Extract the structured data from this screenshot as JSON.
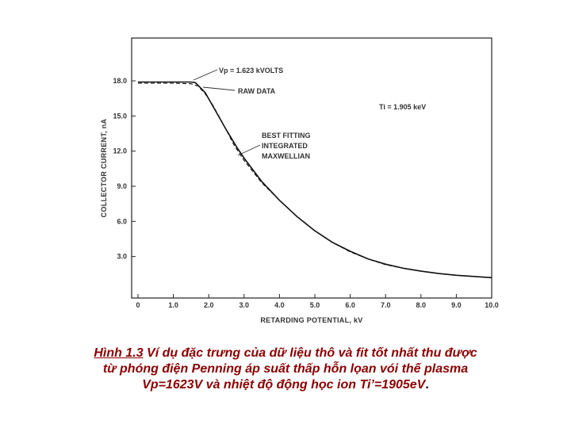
{
  "chart_data": {
    "type": "line",
    "xlabel": "RETARDING POTENTIAL, kV",
    "ylabel": "COLLECTOR CURRENT, nA",
    "xlim": [
      0,
      10
    ],
    "ylim": [
      0,
      18
    ],
    "x_ticks": [
      "0",
      "1.0",
      "2.0",
      "3.0",
      "4.0",
      "5.0",
      "6.0",
      "7.0",
      "8.0",
      "9.0",
      "10.0"
    ],
    "y_ticks": [
      "3.0",
      "6.0",
      "9.0",
      "12.0",
      "15.0",
      "18.0"
    ],
    "grid": false,
    "series": [
      {
        "name": "RAW DATA",
        "style": "dashed",
        "x": [
          0,
          0.5,
          1.0,
          1.5,
          1.7,
          1.9,
          2.1,
          2.3,
          2.5,
          2.7,
          3.0,
          3.5,
          4.0,
          4.5,
          5.0,
          5.5,
          6.0,
          6.5,
          7.0,
          7.5,
          8.0,
          8.5,
          9.0,
          9.5,
          10.0
        ],
        "y": [
          17.8,
          17.8,
          17.8,
          17.75,
          17.55,
          16.9,
          16.0,
          14.9,
          13.8,
          12.6,
          11.2,
          9.3,
          7.8,
          6.4,
          5.2,
          4.2,
          3.4,
          2.8,
          2.3,
          2.0,
          1.75,
          1.55,
          1.4,
          1.3,
          1.2
        ]
      },
      {
        "name": "BEST FITTING INTEGRATED MAXWELLIAN",
        "style": "solid",
        "x": [
          0,
          0.5,
          1.0,
          1.5,
          1.62,
          1.9,
          2.2,
          2.5,
          2.8,
          3.0,
          3.5,
          4.0,
          4.5,
          5.0,
          5.5,
          6.0,
          6.5,
          7.0,
          7.5,
          8.0,
          8.5,
          9.0,
          9.5,
          10.0
        ],
        "y": [
          17.9,
          17.9,
          17.9,
          17.9,
          17.85,
          17.0,
          15.4,
          13.8,
          12.3,
          11.4,
          9.4,
          7.8,
          6.4,
          5.2,
          4.2,
          3.45,
          2.8,
          2.35,
          2.0,
          1.75,
          1.55,
          1.4,
          1.3,
          1.2
        ]
      }
    ],
    "annotations": {
      "vp": "Vp = 1.623 kVOLTS",
      "raw": "RAW DATA",
      "ti": "Ti = 1.905 keV",
      "fit": [
        "BEST FITTING",
        "INTEGRATED",
        "MAXWELLIAN"
      ]
    }
  },
  "caption": {
    "lead": "Hình 1.3",
    "body_line1": " Ví dụ đặc trưng của dữ liệu thô và fit  tốt nhất thu được",
    "line2": "từ phóng điện Penning áp suất thấp hỗn lọan vói thế plasma",
    "line3": "Vp=1623V và nhiệt độ động học ion Ti’=1905eV",
    "end": "."
  }
}
